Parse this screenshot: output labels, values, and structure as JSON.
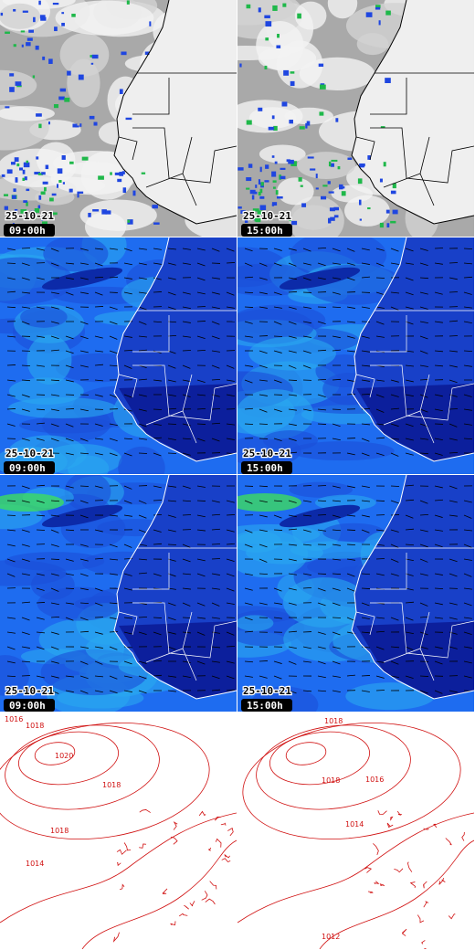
{
  "rows": [
    {
      "panels": [
        {
          "date": "25-10-21",
          "time": "09:00h"
        },
        {
          "date": "25-10-21",
          "time": "15:00h"
        }
      ]
    },
    {
      "panels": [
        {
          "date": "25-10-21",
          "time": "09:00h"
        },
        {
          "date": "25-10-21",
          "time": "15:00h"
        }
      ]
    },
    {
      "panels": [
        {
          "date": "25-10-21",
          "time": "09:00h"
        },
        {
          "date": "25-10-21",
          "time": "15:00h"
        }
      ]
    }
  ],
  "pressure": {
    "panels": [
      {
        "labels": [
          "1016",
          "1018",
          "1020",
          "1018",
          "1018",
          "1014"
        ]
      },
      {
        "labels": [
          "1018",
          "1018",
          "1016",
          "1014",
          "1012"
        ]
      }
    ]
  }
}
